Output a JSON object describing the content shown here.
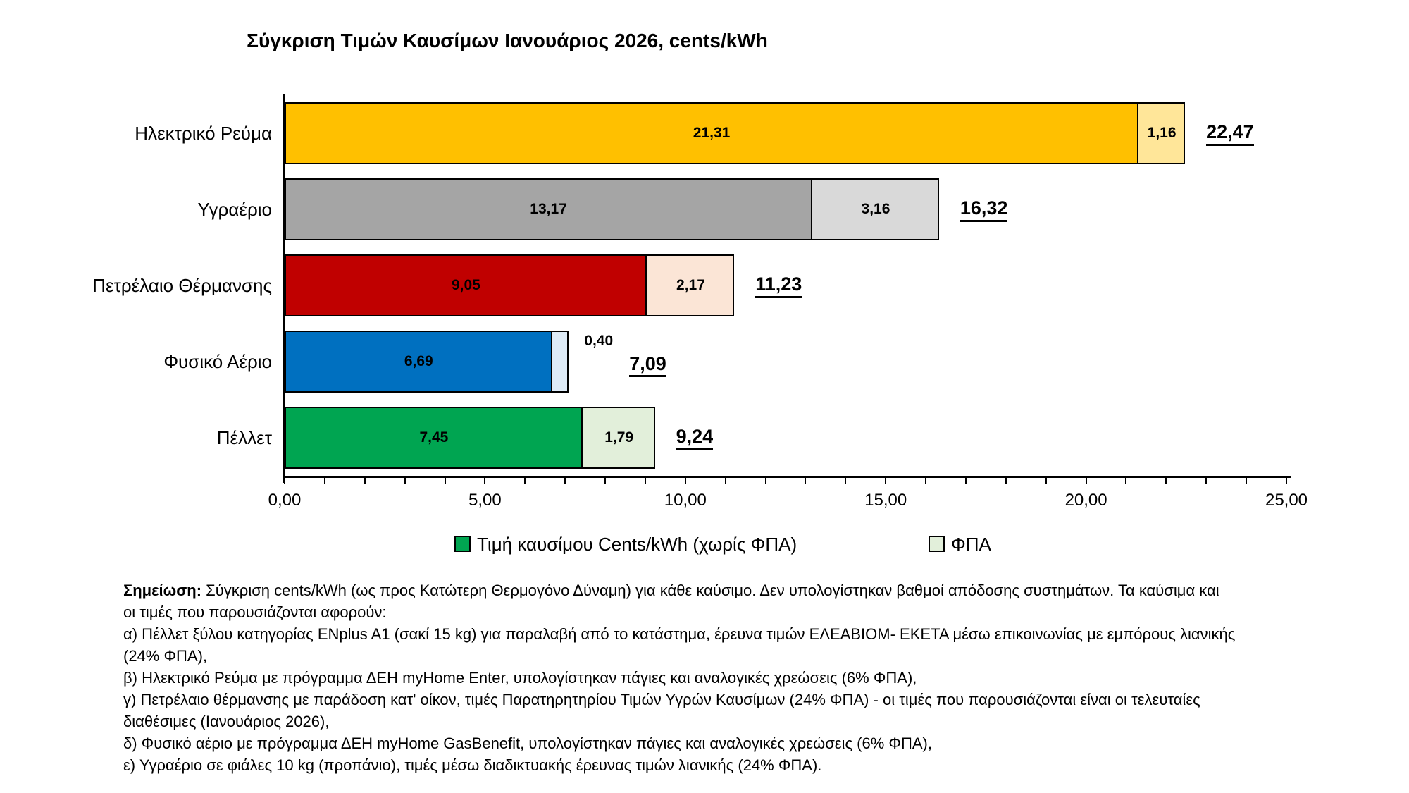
{
  "chart_data": {
    "type": "bar",
    "orientation": "horizontal",
    "stacked": true,
    "grid": false,
    "title": "Σύγκριση Τιμών Καυσίμων Ιανουάριος 2026, cents/kWh",
    "categories": [
      "Ηλεκτρικό Ρεύμα",
      "Υγραέριο",
      "Πετρέλαιο Θέρμανσης",
      "Φυσικό Αέριο",
      "Πέλλετ"
    ],
    "series": [
      {
        "name": "Τιμή καυσίμου Cents/kWh (χωρίς ΦΠΑ)",
        "values": [
          21.31,
          13.17,
          9.05,
          6.69,
          7.45
        ],
        "labels": [
          "21,31",
          "13,17",
          "9,05",
          "6,69",
          "7,45"
        ],
        "colors": [
          "#FFC000",
          "#A5A5A5",
          "#C00000",
          "#0070C0",
          "#00A551"
        ]
      },
      {
        "name": "ΦΠΑ",
        "values": [
          1.16,
          3.16,
          2.17,
          0.4,
          1.79
        ],
        "labels": [
          "1,16",
          "3,16",
          "2,17",
          "0,40",
          "1,79"
        ],
        "colors": [
          "#FFE699",
          "#D9D9D9",
          "#FBE5D6",
          "#DEEBF7",
          "#E2EFDA"
        ]
      }
    ],
    "totals": {
      "values": [
        22.47,
        16.32,
        11.23,
        7.09,
        9.24
      ],
      "labels": [
        "22,47",
        "16,32",
        "11,23",
        "7,09",
        "9,24"
      ]
    },
    "xlim": [
      0,
      25
    ],
    "x_tick_labels": [
      "0,00",
      "5,00",
      "10,00",
      "15,00",
      "20,00",
      "25,00"
    ],
    "x_major_tick_step": 5,
    "x_minor_tick_step": 1,
    "legend": {
      "position": "bottom",
      "entries": [
        {
          "label": "Τιμή καυσίμου Cents/kWh (χωρίς ΦΠΑ)",
          "color": "#00A551"
        },
        {
          "label": "ΦΠΑ",
          "color": "#E2EFDA"
        }
      ]
    },
    "bar_border_color": "#000000",
    "label_color": "#000000"
  },
  "note": {
    "lines": [
      {
        "bold": "Σημείωση:",
        "text": " Σύγκριση cents/kWh (ως προς Κατώτερη Θερμογόνο Δύναμη) για κάθε καύσιμο. Δεν υπολογίστηκαν βαθμοί απόδοσης συστημάτων. Τα καύσιμα και"
      },
      {
        "text": "οι τιμές που παρουσιάζονται αφορούν:"
      },
      {
        "text": "α) Πέλλετ ξύλου κατηγορίας ENplus A1 (σακί 15 kg) για παραλαβή από το κατάστημα, έρευνα τιμών ΕΛΕΑΒΙΟΜ- ΕΚΕΤΑ μέσω  επικοινωνίας με εμπόρους λιανικής"
      },
      {
        "text": "(24% ΦΠΑ),"
      },
      {
        "text": "β) Ηλεκτρικό Ρεύμα με πρόγραμμα ΔΕΗ myHome Enter, υπολογίστηκαν πάγιες και αναλογικές χρεώσεις (6% ΦΠΑ),"
      },
      {
        "text": "γ) Πετρέλαιο θέρμανσης με παράδοση κατ' οίκον, τιμές Παρατηρητηρίου Τιμών Υγρών Καυσίμων (24% ΦΠΑ) - οι τιμές που παρουσιάζονται είναι οι τελευταίες"
      },
      {
        "text": "διαθέσιμες (Ιανουάριος 2026),"
      },
      {
        "text": "δ) Φυσικό αέριο με πρόγραμμα ΔΕΗ myHome GasBenefit, υπολογίστηκαν πάγιες και αναλογικές χρεώσεις (6% ΦΠΑ),"
      },
      {
        "text": "ε) Υγραέριο σε φιάλες 10 kg (προπάνιο), τιμές μέσω διαδικτυακής έρευνας τιμών λιανικής (24% ΦΠΑ)."
      }
    ]
  }
}
